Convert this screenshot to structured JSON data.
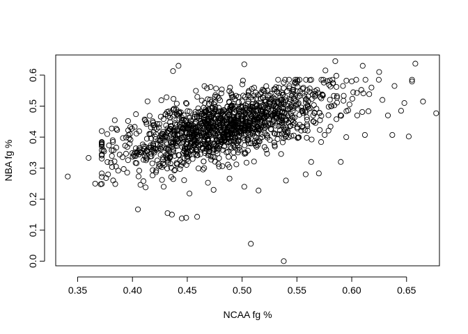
{
  "chart_data": {
    "type": "scatter",
    "title": "",
    "xlabel": "NCAA fg %",
    "ylabel": "NBA fg %",
    "xlim": [
      0.33,
      0.68
    ],
    "ylim": [
      -0.015,
      0.665
    ],
    "xticks": [
      0.35,
      0.4,
      0.45,
      0.5,
      0.55,
      0.6,
      0.65
    ],
    "xtick_labels": [
      "0.35",
      "0.40",
      "0.45",
      "0.50",
      "0.55",
      "0.60",
      "0.65"
    ],
    "yticks": [
      0.0,
      0.1,
      0.2,
      0.3,
      0.4,
      0.5,
      0.6
    ],
    "ytick_labels": [
      "0.0",
      "0.1",
      "0.2",
      "0.3",
      "0.4",
      "0.5",
      "0.6"
    ],
    "grid": false,
    "marker": "open-circle",
    "n_points_approx": 1500,
    "trend": {
      "slope": 0.84,
      "intercept": 0.025,
      "noise_sd": 0.05
    },
    "points": [
      [
        0.341,
        0.273
      ],
      [
        0.36,
        0.333
      ],
      [
        0.366,
        0.25
      ],
      [
        0.371,
        0.248
      ],
      [
        0.372,
        0.378
      ],
      [
        0.376,
        0.268
      ],
      [
        0.377,
        0.41
      ],
      [
        0.382,
        0.39
      ],
      [
        0.385,
        0.305
      ],
      [
        0.386,
        0.423
      ],
      [
        0.392,
        0.297
      ],
      [
        0.396,
        0.452
      ],
      [
        0.405,
        0.167
      ],
      [
        0.41,
        0.258
      ],
      [
        0.412,
        0.238
      ],
      [
        0.432,
        0.155
      ],
      [
        0.436,
        0.15
      ],
      [
        0.437,
        0.613
      ],
      [
        0.442,
        0.63
      ],
      [
        0.445,
        0.138
      ],
      [
        0.449,
        0.14
      ],
      [
        0.452,
        0.218
      ],
      [
        0.459,
        0.143
      ],
      [
        0.468,
        0.558
      ],
      [
        0.474,
        0.23
      ],
      [
        0.489,
        0.56
      ],
      [
        0.502,
        0.635
      ],
      [
        0.502,
        0.24
      ],
      [
        0.508,
        0.056
      ],
      [
        0.515,
        0.228
      ],
      [
        0.53,
        0.555
      ],
      [
        0.538,
        0.0
      ],
      [
        0.54,
        0.26
      ],
      [
        0.553,
        0.548
      ],
      [
        0.558,
        0.28
      ],
      [
        0.563,
        0.32
      ],
      [
        0.57,
        0.283
      ],
      [
        0.576,
        0.615
      ],
      [
        0.58,
        0.583
      ],
      [
        0.585,
        0.645
      ],
      [
        0.586,
        0.598
      ],
      [
        0.59,
        0.32
      ],
      [
        0.592,
        0.565
      ],
      [
        0.595,
        0.4
      ],
      [
        0.6,
        0.58
      ],
      [
        0.605,
        0.47
      ],
      [
        0.61,
        0.63
      ],
      [
        0.612,
        0.407
      ],
      [
        0.618,
        0.56
      ],
      [
        0.625,
        0.61
      ],
      [
        0.628,
        0.52
      ],
      [
        0.633,
        0.47
      ],
      [
        0.637,
        0.407
      ],
      [
        0.639,
        0.565
      ],
      [
        0.645,
        0.485
      ],
      [
        0.648,
        0.51
      ],
      [
        0.652,
        0.402
      ],
      [
        0.658,
        0.637
      ],
      [
        0.665,
        0.515
      ],
      [
        0.677,
        0.477
      ]
    ]
  }
}
